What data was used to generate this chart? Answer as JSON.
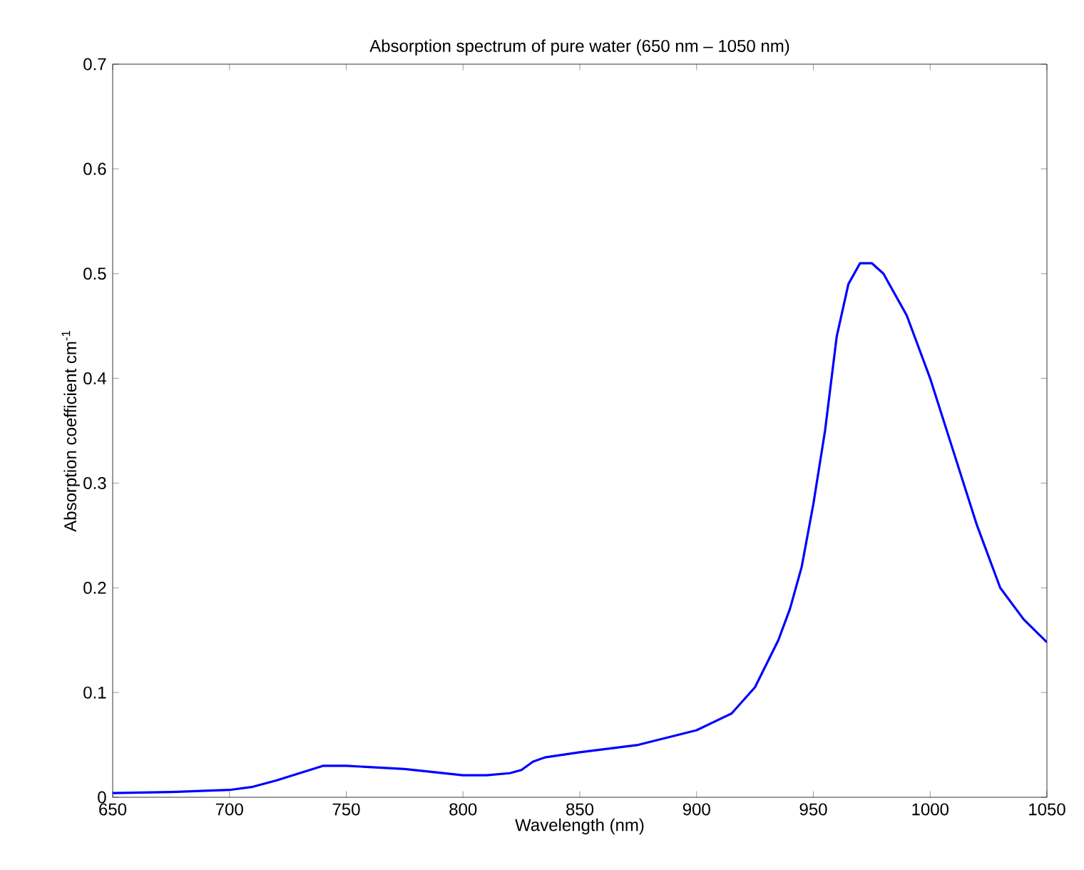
{
  "chart_data": {
    "type": "line",
    "title": "Absorption spectrum of pure water (650 nm – 1050 nm)",
    "xlabel": "Wavelength (nm)",
    "ylabel": "Absorption coefficient cm$^{-1}$",
    "x": [
      650,
      675,
      700,
      710,
      720,
      730,
      740,
      750,
      775,
      800,
      810,
      820,
      825,
      830,
      835,
      850,
      875,
      900,
      915,
      925,
      935,
      940,
      945,
      950,
      955,
      960,
      965,
      970,
      975,
      980,
      990,
      1000,
      1010,
      1020,
      1030,
      1040,
      1050
    ],
    "series": [
      {
        "color": "#0000ff",
        "values": [
          0.004,
          0.005,
          0.007,
          0.01,
          0.016,
          0.023,
          0.03,
          0.03,
          0.027,
          0.021,
          0.021,
          0.023,
          0.026,
          0.034,
          0.038,
          0.043,
          0.05,
          0.064,
          0.08,
          0.105,
          0.15,
          0.18,
          0.22,
          0.28,
          0.35,
          0.44,
          0.49,
          0.51,
          0.51,
          0.5,
          0.46,
          0.4,
          0.33,
          0.26,
          0.2,
          0.17,
          0.148
        ]
      }
    ],
    "xlim": [
      650,
      1050
    ],
    "ylim": [
      0,
      0.7
    ],
    "xticks": [
      650,
      700,
      750,
      800,
      850,
      900,
      950,
      1000,
      1050
    ],
    "yticks": [
      0,
      0.1,
      0.2,
      0.3,
      0.4,
      0.5,
      0.6,
      0.7
    ],
    "grid": false,
    "marker": "none",
    "line_style": "solid"
  }
}
